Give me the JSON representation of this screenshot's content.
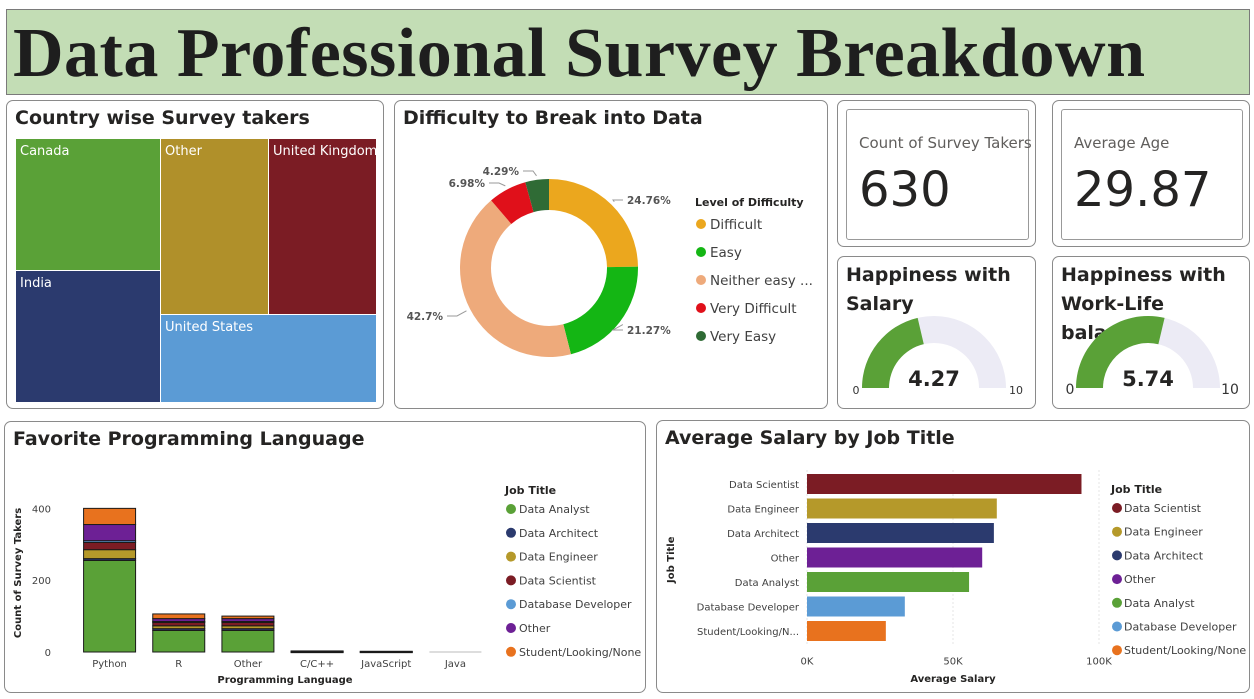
{
  "header": {
    "title": "Data Professional Survey Breakdown"
  },
  "colors": {
    "banner": "#c3ddb5",
    "data_scientist": "#7b1c24",
    "data_engineer": "#b5992a",
    "data_architect": "#2b3a6e",
    "other": "#6d2095",
    "data_analyst": "#5aa137",
    "database_developer": "#5b9bd5",
    "student": "#e8721e"
  },
  "treemap": {
    "title": "Country wise Survey takers",
    "cells": [
      {
        "label": "Canada",
        "color": "#5aa137"
      },
      {
        "label": "India",
        "color": "#2b3a6e"
      },
      {
        "label": "Other",
        "color": "#b0902a"
      },
      {
        "label": "United Kingdom",
        "color": "#7b1c24"
      },
      {
        "label": "United States",
        "color": "#5b9bd5"
      }
    ]
  },
  "kpis": {
    "count": {
      "label": "Count of Survey Takers",
      "value": "630"
    },
    "age": {
      "label": "Average Age",
      "value": "29.87"
    }
  },
  "gauges": {
    "salary": {
      "title": "Happiness with Salary",
      "value": 4.27,
      "display": "4.27",
      "min": "0",
      "max": "10",
      "min_value": 0,
      "max_value": 10
    },
    "worklife": {
      "title": "Happiness with Work-Life balance",
      "value": 5.74,
      "display": "5.74",
      "min": "0",
      "max": "10",
      "min_value": 0,
      "max_value": 10
    }
  },
  "chart_data": [
    {
      "type": "pie",
      "title": "Difficulty to Break into Data",
      "legend_title": "Level of Difficulty",
      "legend_placement": "right",
      "slices": [
        {
          "name": "Difficult",
          "value": 24.76,
          "label": "24.76%",
          "color": "#eba71e"
        },
        {
          "name": "Easy",
          "value": 21.27,
          "label": "21.27%",
          "color": "#14b614"
        },
        {
          "name": "Neither easy ...",
          "value": 42.7,
          "label": "42.7%",
          "color": "#eeaa7b"
        },
        {
          "name": "Very Difficult",
          "value": 6.98,
          "label": "6.98%",
          "color": "#e0101a"
        },
        {
          "name": "Very Easy",
          "value": 4.29,
          "label": "4.29%",
          "color": "#2f6b35"
        }
      ]
    },
    {
      "type": "bar",
      "stacked": true,
      "title": "Favorite Programming Language",
      "xlabel": "Programming Language",
      "ylabel": "Count of Survey Takers",
      "ylim": [
        0,
        440
      ],
      "yticks": [
        "0",
        "200",
        "400"
      ],
      "ytick_values": [
        0,
        200,
        400
      ],
      "legend_title": "Job Title",
      "legend_placement": "right",
      "categories": [
        "Python",
        "R",
        "Other",
        "C/C++",
        "JavaScript",
        "Java"
      ],
      "series": [
        {
          "name": "Data Analyst",
          "color": "#5aa137",
          "values": [
            255,
            60,
            60,
            0,
            0,
            0
          ]
        },
        {
          "name": "Data Architect",
          "color": "#2b3a6e",
          "values": [
            5,
            5,
            5,
            0,
            0,
            0
          ]
        },
        {
          "name": "Data Engineer",
          "color": "#b5992a",
          "values": [
            25,
            8,
            8,
            1,
            0,
            0
          ]
        },
        {
          "name": "Data Scientist",
          "color": "#7b1c24",
          "values": [
            20,
            10,
            10,
            1,
            1,
            0
          ]
        },
        {
          "name": "Database Developer",
          "color": "#5b9bd5",
          "values": [
            5,
            2,
            2,
            0,
            0,
            0
          ]
        },
        {
          "name": "Other",
          "color": "#6d2095",
          "values": [
            45,
            8,
            8,
            1,
            1,
            0
          ]
        },
        {
          "name": "Student/Looking/None",
          "color": "#e8721e",
          "values": [
            45,
            13,
            7,
            0,
            0,
            0
          ]
        }
      ]
    },
    {
      "type": "bar",
      "orientation": "horizontal",
      "title": "Average Salary by Job Title",
      "xlabel": "Average Salary",
      "ylabel": "Job Title",
      "xlim": [
        0,
        100000
      ],
      "xticks": [
        "0K",
        "50K",
        "100K"
      ],
      "xtick_values": [
        0,
        50000,
        100000
      ],
      "legend_title": "Job Title",
      "legend_placement": "right",
      "categories": [
        "Data Scientist",
        "Data Engineer",
        "Data Architect",
        "Other",
        "Data Analyst",
        "Database Developer",
        "Student/Looking/N..."
      ],
      "values": [
        94000,
        65000,
        64000,
        60000,
        55500,
        33500,
        27000
      ],
      "colors": [
        "#7b1c24",
        "#b5992a",
        "#2b3a6e",
        "#6d2095",
        "#5aa137",
        "#5b9bd5",
        "#e8721e"
      ],
      "legend": [
        "Data Scientist",
        "Data Engineer",
        "Data Architect",
        "Other",
        "Data Analyst",
        "Database Developer",
        "Student/Looking/None"
      ]
    }
  ]
}
